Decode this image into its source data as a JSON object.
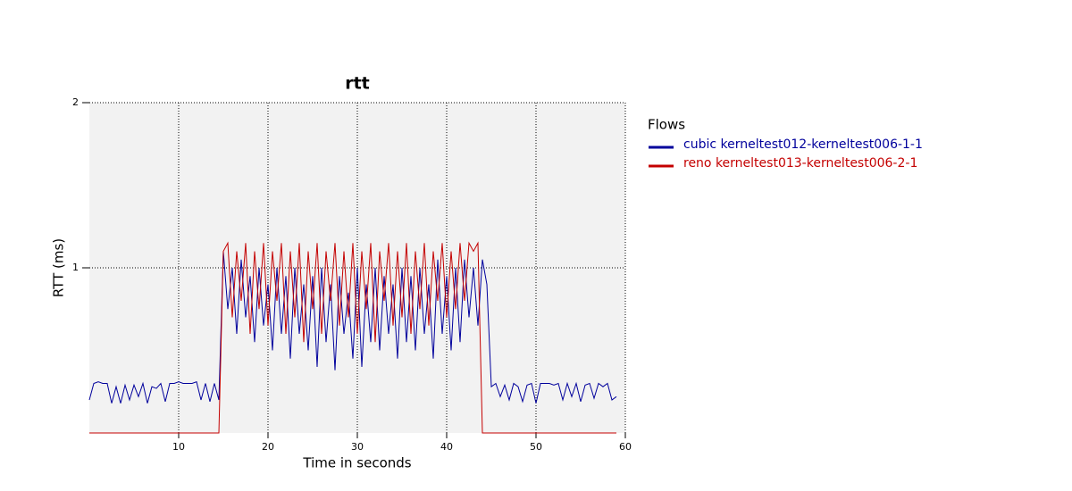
{
  "chart_data": {
    "type": "line",
    "title": "rtt",
    "x_label": "Time in seconds",
    "y_label": "RTT (ms)",
    "legend_title": "Flows",
    "x": [
      0,
      0.5,
      1,
      1.5,
      2,
      2.5,
      3,
      3.5,
      4,
      4.5,
      5,
      5.5,
      6,
      6.5,
      7,
      7.5,
      8,
      8.5,
      9,
      9.5,
      10,
      10.5,
      11,
      11.5,
      12,
      12.5,
      13,
      13.5,
      14,
      14.5,
      15,
      15.5,
      16,
      16.5,
      17,
      17.5,
      18,
      18.5,
      19,
      19.5,
      20,
      20.5,
      21,
      21.5,
      22,
      22.5,
      23,
      23.5,
      24,
      24.5,
      25,
      25.5,
      26,
      26.5,
      27,
      27.5,
      28,
      28.5,
      29,
      29.5,
      30,
      30.5,
      31,
      31.5,
      32,
      32.5,
      33,
      33.5,
      34,
      34.5,
      35,
      35.5,
      36,
      36.5,
      37,
      37.5,
      38,
      38.5,
      39,
      39.5,
      40,
      40.5,
      41,
      41.5,
      42,
      42.5,
      43,
      43.5,
      44,
      44.5,
      45,
      45.5,
      46,
      46.5,
      47,
      47.5,
      48,
      48.5,
      49,
      49.5,
      50,
      50.5,
      51,
      51.5,
      52,
      52.5,
      53,
      53.5,
      54,
      54.5,
      55,
      55.5,
      56,
      56.5,
      57,
      57.5,
      58,
      58.5,
      59
    ],
    "series": [
      {
        "name": "cubic kerneltest012-kerneltest006-1-1",
        "color": "#00009c",
        "values": [
          0.2,
          0.3,
          0.31,
          0.3,
          0.3,
          0.18,
          0.28,
          0.18,
          0.29,
          0.2,
          0.29,
          0.22,
          0.3,
          0.18,
          0.28,
          0.27,
          0.3,
          0.19,
          0.3,
          0.3,
          0.31,
          0.3,
          0.3,
          0.3,
          0.31,
          0.2,
          0.3,
          0.19,
          0.3,
          0.2,
          1.1,
          0.75,
          1.0,
          0.6,
          1.05,
          0.7,
          0.95,
          0.55,
          1.0,
          0.65,
          0.9,
          0.5,
          1.0,
          0.6,
          0.95,
          0.45,
          1.0,
          0.6,
          0.9,
          0.5,
          0.95,
          0.4,
          1.0,
          0.55,
          0.9,
          0.38,
          0.95,
          0.6,
          0.85,
          0.45,
          1.0,
          0.4,
          0.9,
          0.55,
          1.0,
          0.5,
          0.95,
          0.6,
          0.9,
          0.45,
          1.0,
          0.55,
          0.95,
          0.5,
          1.0,
          0.6,
          0.9,
          0.45,
          1.05,
          0.6,
          0.95,
          0.5,
          1.0,
          0.55,
          1.05,
          0.7,
          1.0,
          0.65,
          1.05,
          0.9,
          0.28,
          0.3,
          0.22,
          0.29,
          0.2,
          0.3,
          0.28,
          0.19,
          0.29,
          0.3,
          0.18,
          0.3,
          0.3,
          0.3,
          0.29,
          0.3,
          0.2,
          0.3,
          0.22,
          0.3,
          0.19,
          0.29,
          0.3,
          0.21,
          0.3,
          0.28,
          0.3,
          0.2,
          0.22
        ]
      },
      {
        "name": "reno kerneltest013-kerneltest006-2-1",
        "color": "#c40000",
        "values": [
          0,
          0,
          0,
          0,
          0,
          0,
          0,
          0,
          0,
          0,
          0,
          0,
          0,
          0,
          0,
          0,
          0,
          0,
          0,
          0,
          0,
          0,
          0,
          0,
          0,
          0,
          0,
          0,
          0,
          0,
          1.1,
          1.15,
          0.7,
          1.1,
          0.8,
          1.15,
          0.6,
          1.1,
          0.75,
          1.15,
          0.65,
          1.1,
          0.8,
          1.15,
          0.6,
          1.1,
          0.7,
          1.15,
          0.55,
          1.1,
          0.75,
          1.15,
          0.6,
          1.1,
          0.8,
          1.15,
          0.65,
          1.1,
          0.7,
          1.15,
          0.6,
          1.1,
          0.75,
          1.15,
          0.55,
          1.1,
          0.8,
          1.15,
          0.65,
          1.1,
          0.7,
          1.15,
          0.6,
          1.1,
          0.75,
          1.15,
          0.65,
          1.1,
          0.8,
          1.15,
          0.7,
          1.1,
          0.75,
          1.15,
          0.8,
          1.15,
          1.1,
          1.15,
          0,
          0,
          0,
          0,
          0,
          0,
          0,
          0,
          0,
          0,
          0,
          0,
          0,
          0,
          0,
          0,
          0,
          0,
          0,
          0,
          0,
          0,
          0,
          0,
          0,
          0,
          0,
          0,
          0,
          0,
          0
        ]
      }
    ],
    "xlim": [
      0,
      60
    ],
    "ylim": [
      0,
      2
    ],
    "xticks": [
      10,
      20,
      30,
      40,
      50,
      60
    ],
    "yticks": [
      1,
      2
    ],
    "grid": true,
    "legend": "right"
  }
}
